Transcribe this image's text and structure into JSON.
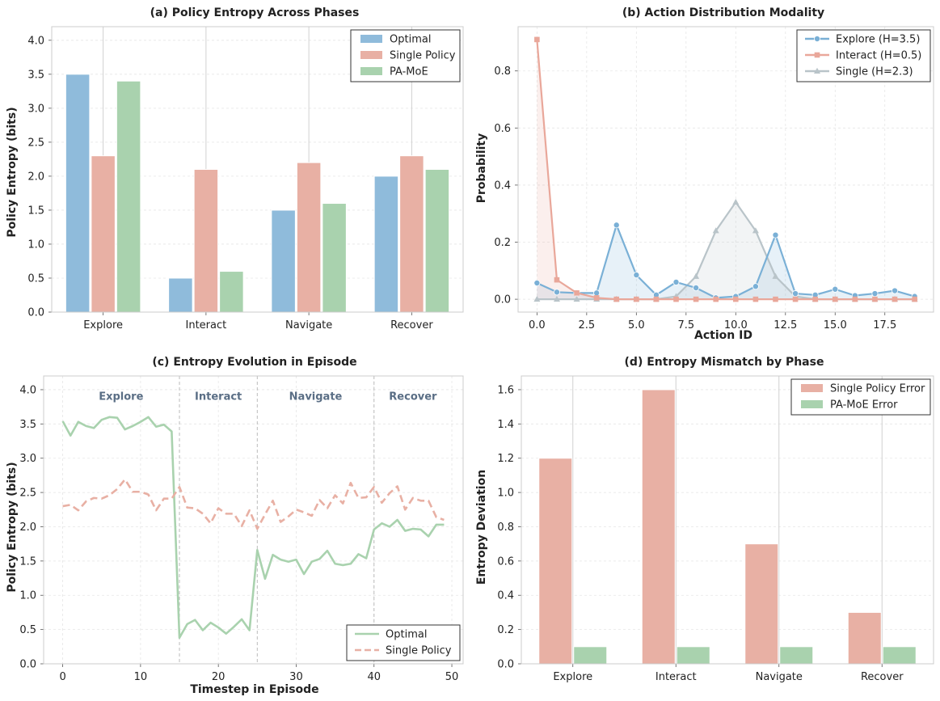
{
  "colors": {
    "optimal": "#8fbbdb",
    "single": "#e8b0a4",
    "pamoe": "#a9d2ae",
    "explore": "#7ab0d6",
    "interact": "#e9a79a",
    "single_gray": "#b9c4c9",
    "phase_text": "#5a6e85"
  },
  "chart_data": [
    {
      "id": "a",
      "type": "bar",
      "title": "(a) Policy Entropy Across Phases",
      "xlabel": "",
      "ylabel": "Policy Entropy (bits)",
      "categories": [
        "Explore",
        "Interact",
        "Navigate",
        "Recover"
      ],
      "series": [
        {
          "name": "Optimal",
          "values": [
            3.5,
            0.5,
            1.5,
            2.0
          ],
          "color_key": "optimal"
        },
        {
          "name": "Single Policy",
          "values": [
            2.3,
            2.1,
            2.2,
            2.3
          ],
          "color_key": "single"
        },
        {
          "name": "PA-MoE",
          "values": [
            3.4,
            0.6,
            1.6,
            2.1
          ],
          "color_key": "pamoe"
        }
      ],
      "ylim": [
        0,
        4.2
      ],
      "yticks": [
        "0.0",
        "0.5",
        "1.0",
        "1.5",
        "2.0",
        "2.5",
        "3.0",
        "3.5",
        "4.0"
      ],
      "legend": "top-right"
    },
    {
      "id": "b",
      "type": "line",
      "title": "(b) Action Distribution Modality",
      "xlabel": "Action ID",
      "ylabel": "Probability",
      "x": [
        0,
        1,
        2,
        3,
        4,
        5,
        6,
        7,
        8,
        9,
        10,
        11,
        12,
        13,
        14,
        15,
        16,
        17,
        18,
        19
      ],
      "series": [
        {
          "name": "Explore (H=3.5)",
          "marker": "circle",
          "color_key": "explore",
          "values": [
            0.057,
            0.025,
            0.022,
            0.022,
            0.26,
            0.085,
            0.015,
            0.06,
            0.04,
            0.005,
            0.01,
            0.045,
            0.225,
            0.02,
            0.015,
            0.035,
            0.013,
            0.02,
            0.03,
            0.01
          ]
        },
        {
          "name": "Interact (H=0.5)",
          "marker": "square",
          "color_key": "interact",
          "values": [
            0.91,
            0.068,
            0.022,
            0.005,
            0.0,
            0.0,
            0.0,
            0.0,
            0.0,
            0.0,
            0.0,
            0.0,
            0.0,
            0.0,
            0.0,
            0.0,
            0.0,
            0.0,
            0.0,
            0.0
          ]
        },
        {
          "name": "Single (H=2.3)",
          "marker": "triangle",
          "color_key": "single_gray",
          "values": [
            0.0,
            0.0,
            0.0,
            0.0,
            0.0,
            0.0,
            0.0,
            0.01,
            0.08,
            0.24,
            0.34,
            0.24,
            0.08,
            0.01,
            0.0,
            0.0,
            0.0,
            0.0,
            0.0,
            0.0
          ]
        }
      ],
      "xlim": [
        -0.95,
        19.95
      ],
      "ylim": [
        -0.045,
        0.955
      ],
      "xticks": [
        "0.0",
        "2.5",
        "5.0",
        "7.5",
        "10.0",
        "12.5",
        "15.0",
        "17.5"
      ],
      "xtick_values": [
        0,
        2.5,
        5,
        7.5,
        10,
        12.5,
        15,
        17.5
      ],
      "yticks": [
        "0.0",
        "0.2",
        "0.4",
        "0.6",
        "0.8"
      ],
      "ytick_values": [
        0,
        0.2,
        0.4,
        0.6,
        0.8
      ],
      "legend": "top-right"
    },
    {
      "id": "c",
      "type": "line",
      "title": "(c) Entropy Evolution in Episode",
      "xlabel": "Timestep in Episode",
      "ylabel": "Policy Entropy (bits)",
      "x": [
        0,
        1,
        2,
        3,
        4,
        5,
        6,
        7,
        8,
        9,
        10,
        11,
        12,
        13,
        14,
        15,
        16,
        17,
        18,
        19,
        20,
        21,
        22,
        23,
        24,
        25,
        26,
        27,
        28,
        29,
        30,
        31,
        32,
        33,
        34,
        35,
        36,
        37,
        38,
        39,
        40,
        41,
        42,
        43,
        44,
        45,
        46,
        47,
        48,
        49
      ],
      "series": [
        {
          "name": "Optimal",
          "style": "solid",
          "color_key": "pamoe",
          "values": [
            3.54,
            3.33,
            3.53,
            3.47,
            3.44,
            3.56,
            3.6,
            3.59,
            3.42,
            3.47,
            3.53,
            3.6,
            3.46,
            3.49,
            3.39,
            0.38,
            0.58,
            0.64,
            0.49,
            0.6,
            0.53,
            0.44,
            0.54,
            0.65,
            0.49,
            1.66,
            1.24,
            1.59,
            1.52,
            1.49,
            1.52,
            1.31,
            1.49,
            1.53,
            1.65,
            1.46,
            1.44,
            1.46,
            1.6,
            1.54,
            1.96,
            2.05,
            2.0,
            2.1,
            1.94,
            1.97,
            1.96,
            1.86,
            2.03,
            2.03
          ]
        },
        {
          "name": "Single Policy",
          "style": "dashed",
          "color_key": "single",
          "values": [
            2.3,
            2.32,
            2.24,
            2.37,
            2.42,
            2.41,
            2.46,
            2.55,
            2.69,
            2.51,
            2.51,
            2.47,
            2.24,
            2.41,
            2.41,
            2.58,
            2.28,
            2.27,
            2.19,
            2.05,
            2.27,
            2.19,
            2.19,
            2.01,
            2.24,
            1.97,
            2.18,
            2.38,
            2.07,
            2.15,
            2.25,
            2.21,
            2.16,
            2.39,
            2.27,
            2.46,
            2.34,
            2.64,
            2.42,
            2.43,
            2.58,
            2.35,
            2.49,
            2.59,
            2.25,
            2.42,
            2.38,
            2.38,
            2.14,
            2.1
          ]
        }
      ],
      "phases": [
        "Explore",
        "Interact",
        "Navigate",
        "Recover"
      ],
      "phase_boundaries": [
        15,
        25,
        40
      ],
      "xlim": [
        -2.45,
        51.45
      ],
      "ylim": [
        0,
        4.2
      ],
      "xticks": [
        "0",
        "10",
        "20",
        "30",
        "40",
        "50"
      ],
      "xtick_values": [
        0,
        10,
        20,
        30,
        40,
        50
      ],
      "yticks": [
        "0.0",
        "0.5",
        "1.0",
        "1.5",
        "2.0",
        "2.5",
        "3.0",
        "3.5",
        "4.0"
      ],
      "legend": "bottom-right"
    },
    {
      "id": "d",
      "type": "bar",
      "title": "(d) Entropy Mismatch by Phase",
      "xlabel": "",
      "ylabel": "Entropy Deviation",
      "categories": [
        "Explore",
        "Interact",
        "Navigate",
        "Recover"
      ],
      "series": [
        {
          "name": "Single Policy Error",
          "values": [
            1.2,
            1.6,
            0.7,
            0.3
          ],
          "color_key": "single"
        },
        {
          "name": "PA-MoE Error",
          "values": [
            0.1,
            0.1,
            0.1,
            0.1
          ],
          "color_key": "pamoe"
        }
      ],
      "ylim": [
        0,
        1.68
      ],
      "yticks": [
        "0.0",
        "0.2",
        "0.4",
        "0.6",
        "0.8",
        "1.0",
        "1.2",
        "1.4",
        "1.6"
      ],
      "legend": "top-right"
    }
  ]
}
